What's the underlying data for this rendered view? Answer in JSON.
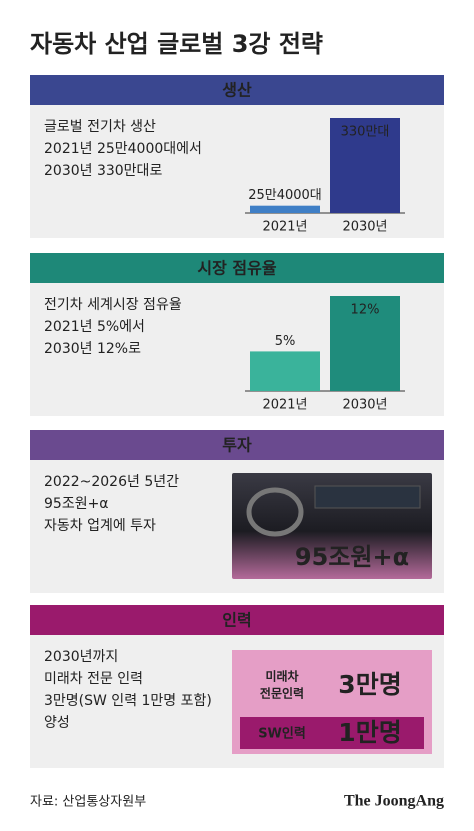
{
  "title": "자동차 산업 글로벌 3강 전략",
  "sections": [
    {
      "header": "생산",
      "lines": [
        "글로벌 전기차 생산",
        "2021년 25만4000대에서",
        "2030년 330만대로"
      ]
    },
    {
      "header": "시장 점유율",
      "lines": [
        "전기차 세계시장 점유율",
        "2021년 5%에서",
        "2030년 12%로"
      ]
    },
    {
      "header": "투자",
      "lines": [
        "2022~2026년 5년간",
        "95조원+α",
        "자동차 업계에 투자"
      ],
      "image_caption": "95조원+α"
    },
    {
      "header": "인력",
      "lines": [
        "2030년까지",
        "미래차 전문 인력",
        "3만명(SW 인력 1만명 포함)",
        "양성"
      ],
      "callouts": [
        {
          "label": [
            "미래차",
            "전문인력"
          ],
          "value": "3만명"
        },
        {
          "label": [
            "SW인력"
          ],
          "value": "1만명"
        }
      ]
    }
  ],
  "chart_data": [
    {
      "type": "bar",
      "categories": [
        "2021년",
        "2030년"
      ],
      "values": [
        254000,
        3300000
      ],
      "value_labels": [
        "25만4000대",
        "330만대"
      ],
      "colors": [
        "#3f7fc6",
        "#2f3a8c"
      ]
    },
    {
      "type": "bar",
      "categories": [
        "2021년",
        "2030년"
      ],
      "values": [
        5,
        12
      ],
      "value_labels": [
        "5%",
        "12%"
      ],
      "colors": [
        "#3ab39b",
        "#1f8c7c"
      ]
    }
  ],
  "source": "자료: 산업통상자원부",
  "logo": "The JoongAng"
}
